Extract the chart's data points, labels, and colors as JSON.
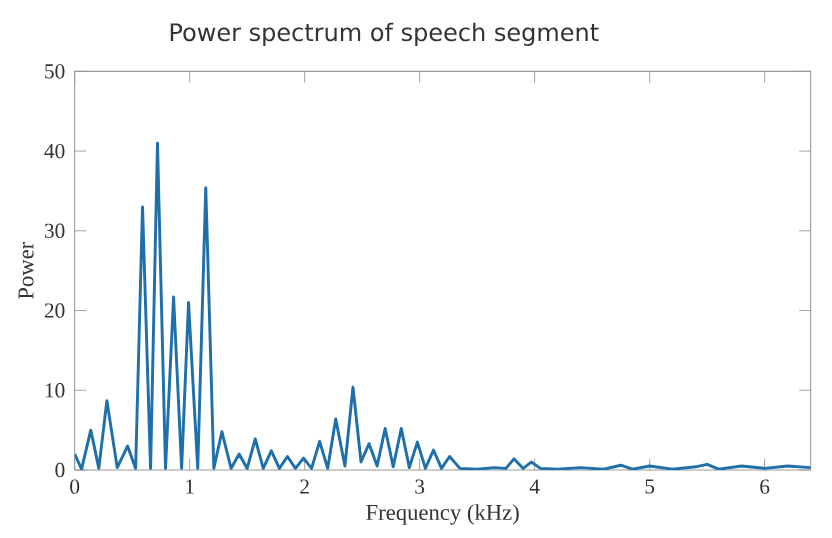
{
  "chart_data": {
    "type": "line",
    "title": "Power spectrum of speech segment",
    "xlabel": "Frequency (kHz)",
    "ylabel": "Power",
    "x": [
      0,
      0.06,
      0.14,
      0.21,
      0.28,
      0.37,
      0.46,
      0.53,
      0.59,
      0.66,
      0.72,
      0.79,
      0.86,
      0.93,
      0.99,
      1.07,
      1.14,
      1.21,
      1.28,
      1.36,
      1.43,
      1.5,
      1.57,
      1.64,
      1.71,
      1.78,
      1.85,
      1.92,
      1.99,
      2.06,
      2.13,
      2.2,
      2.27,
      2.35,
      2.42,
      2.49,
      2.56,
      2.63,
      2.7,
      2.77,
      2.84,
      2.91,
      2.98,
      3.05,
      3.12,
      3.19,
      3.26,
      3.35,
      3.5,
      3.65,
      3.75,
      3.82,
      3.9,
      3.97,
      4.05,
      4.2,
      4.4,
      4.6,
      4.75,
      4.85,
      5.0,
      5.2,
      5.4,
      5.5,
      5.6,
      5.8,
      6.0,
      6.2,
      6.4
    ],
    "values": [
      2,
      0.1,
      5,
      0.2,
      8.7,
      0.3,
      3,
      0.2,
      33,
      0.2,
      41,
      0.2,
      21.7,
      0.2,
      21,
      0.2,
      35.4,
      0.2,
      4.8,
      0.2,
      2,
      0.2,
      3.9,
      0.2,
      2.4,
      0.2,
      1.7,
      0.2,
      1.5,
      0.2,
      3.6,
      0.2,
      6.4,
      0.5,
      10.4,
      1,
      3.3,
      0.5,
      5.2,
      0.4,
      5.2,
      0.3,
      3.5,
      0.2,
      2.5,
      0.2,
      1.7,
      0.2,
      0.1,
      0.3,
      0.2,
      1.4,
      0.2,
      1,
      0.2,
      0.1,
      0.3,
      0.1,
      0.6,
      0.1,
      0.5,
      0.1,
      0.4,
      0.7,
      0.1,
      0.5,
      0.2,
      0.5,
      0.3
    ],
    "color": "#1f6fab",
    "xlim": [
      0,
      6.4
    ],
    "ylim": [
      0,
      50
    ],
    "xticks": [
      0,
      1,
      2,
      3,
      4,
      5,
      6
    ],
    "yticks": [
      0,
      10,
      20,
      30,
      40,
      50
    ],
    "grid": false,
    "marker": "none",
    "line_style": "solid"
  }
}
